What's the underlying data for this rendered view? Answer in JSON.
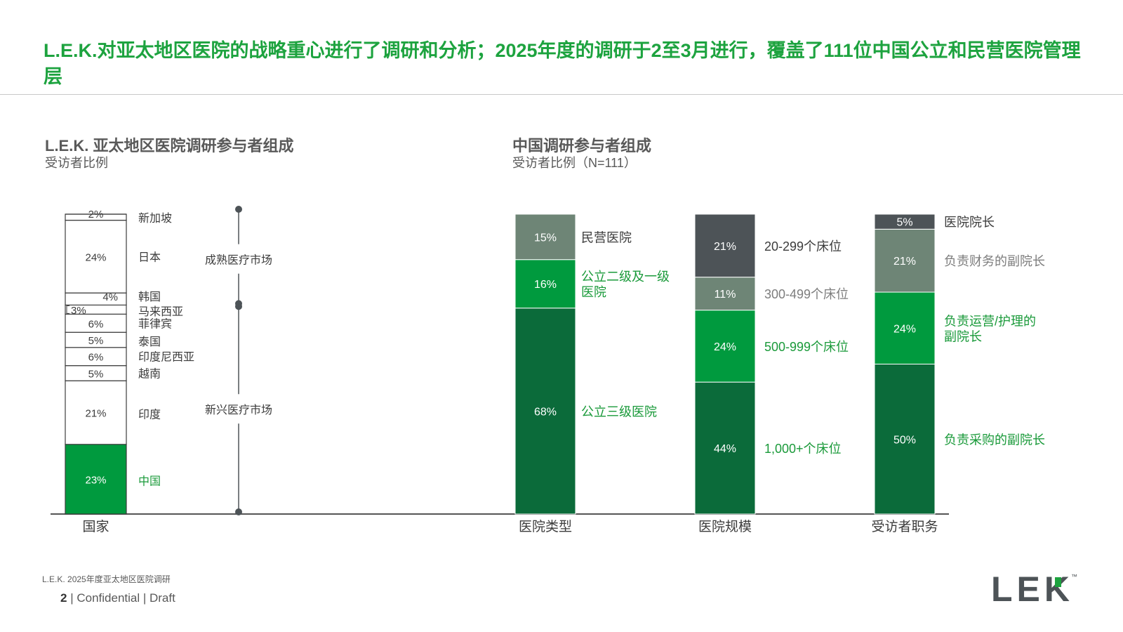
{
  "header": {
    "title": "L.E.K.对亚太地区医院的战略重心进行了调研和分析；2025年度的调研于2至3月进行，覆盖了111位中国公立和民营医院管理层"
  },
  "left_section": {
    "title": "L.E.K. 亚太地区医院调研参与者组成",
    "subtitle": "受访者比例"
  },
  "right_section": {
    "title": "中国调研参与者组成",
    "subtitle": "受访者比例（N=111）"
  },
  "colors": {
    "dark_green": "#0b6b3a",
    "bright_green": "#009a3e",
    "gray_green": "#6e8576",
    "dark_gray": "#4d5357",
    "white": "#ffffff",
    "label_gray": "#3c3c3c",
    "label_green": "#1a9a3a",
    "label_muted": "#7d7d7d"
  },
  "chart_data": [
    {
      "type": "bar",
      "stacked": true,
      "category": "国家",
      "segments": [
        {
          "name": "中国",
          "value": 23,
          "label": "23%",
          "color": "bright_green",
          "label_color": "label_green"
        },
        {
          "name": "印度",
          "value": 21,
          "label": "21%",
          "color": "white",
          "label_color": "label_gray"
        },
        {
          "name": "越南",
          "value": 5,
          "label": "5%",
          "color": "white",
          "label_color": "label_gray"
        },
        {
          "name": "印度尼西亚",
          "value": 6,
          "label": "6%",
          "color": "white",
          "label_color": "label_gray"
        },
        {
          "name": "泰国",
          "value": 5,
          "label": "5%",
          "color": "white",
          "label_color": "label_gray"
        },
        {
          "name": "菲律宾",
          "value": 6,
          "label": "6%",
          "color": "white",
          "label_color": "label_gray"
        },
        {
          "name": "马来西亚",
          "value": 3,
          "label": "3%",
          "color": "white",
          "label_color": "label_gray"
        },
        {
          "name": "韩国",
          "value": 4,
          "label": "4%",
          "color": "white",
          "label_color": "label_gray"
        },
        {
          "name": "日本",
          "value": 24,
          "label": "24%",
          "color": "white",
          "label_color": "label_gray"
        },
        {
          "name": "新加坡",
          "value": 2,
          "label": "2%",
          "color": "white",
          "label_color": "label_gray"
        }
      ],
      "market_groups": [
        {
          "name": "成熟医疗市场",
          "from": "韩国",
          "to": "新加坡"
        },
        {
          "name": "新兴医疗市场",
          "from": "中国",
          "to": "马来西亚"
        }
      ]
    },
    {
      "type": "bar",
      "stacked": true,
      "category": "医院类型",
      "segments": [
        {
          "name": "公立三级医院",
          "value": 68,
          "label": "68%",
          "color": "dark_green",
          "label_color": "label_green"
        },
        {
          "name": "公立二级及一级医院",
          "value": 16,
          "label": "16%",
          "color": "bright_green",
          "label_color": "label_green"
        },
        {
          "name": "民营医院",
          "value": 15,
          "label": "15%",
          "color": "gray_green",
          "label_color": "label_gray"
        }
      ]
    },
    {
      "type": "bar",
      "stacked": true,
      "category": "医院规模",
      "segments": [
        {
          "name": "1,000+个床位",
          "value": 44,
          "label": "44%",
          "color": "dark_green",
          "label_color": "label_green"
        },
        {
          "name": "500-999个床位",
          "value": 24,
          "label": "24%",
          "color": "bright_green",
          "label_color": "label_green"
        },
        {
          "name": "300-499个床位",
          "value": 11,
          "label": "11%",
          "color": "gray_green",
          "label_color": "label_muted"
        },
        {
          "name": "20-299个床位",
          "value": 21,
          "label": "21%",
          "color": "dark_gray",
          "label_color": "label_gray"
        }
      ]
    },
    {
      "type": "bar",
      "stacked": true,
      "category": "受访者职务",
      "segments": [
        {
          "name": "负责采购的副院长",
          "value": 50,
          "label": "50%",
          "color": "dark_green",
          "label_color": "label_green"
        },
        {
          "name": "负责运营/护理的副院长",
          "value": 24,
          "label": "24%",
          "color": "bright_green",
          "label_color": "label_green"
        },
        {
          "name": "负责财务的副院长",
          "value": 21,
          "label": "21%",
          "color": "gray_green",
          "label_color": "label_muted"
        },
        {
          "name": "医院院长",
          "value": 5,
          "label": "5%",
          "color": "dark_gray",
          "label_color": "label_gray"
        }
      ]
    }
  ],
  "footer": {
    "source": "L.E.K. 2025年度亚太地区医院调研",
    "page_number": "2",
    "confidential": "| Confidential | Draft"
  },
  "logo": {
    "text": "LEK",
    "trademark": "™"
  }
}
